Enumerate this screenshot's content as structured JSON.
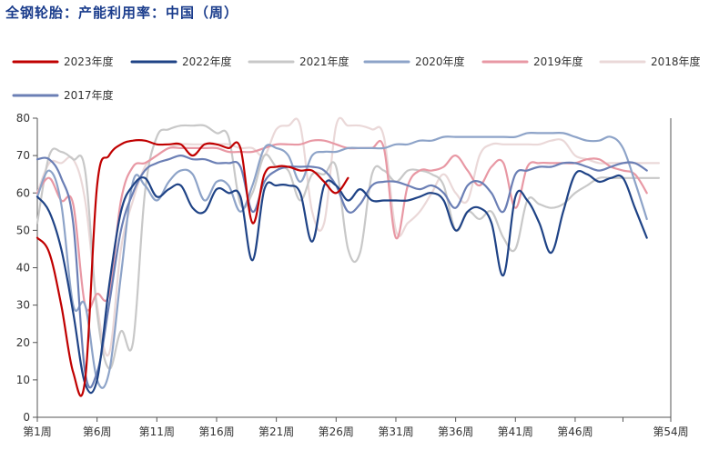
{
  "chart_data": {
    "type": "line",
    "title": "全钢轮胎：产能利用率：中国（周）",
    "xlabel": "",
    "ylabel": "",
    "ylim": [
      0,
      80
    ],
    "xlim": [
      1,
      54
    ],
    "yticks": [
      0,
      10,
      20,
      30,
      40,
      50,
      60,
      70,
      80
    ],
    "xticks": [
      {
        "w": 1,
        "label": "第1周"
      },
      {
        "w": 6,
        "label": "第6周"
      },
      {
        "w": 11,
        "label": "第11周"
      },
      {
        "w": 16,
        "label": "第16周"
      },
      {
        "w": 21,
        "label": "第21周"
      },
      {
        "w": 26,
        "label": "第26周"
      },
      {
        "w": 31,
        "label": "第31周"
      },
      {
        "w": 36,
        "label": "第36周"
      },
      {
        "w": 41,
        "label": "第41周"
      },
      {
        "w": 46,
        "label": "第46周"
      },
      {
        "w": 54,
        "label": "第54周"
      }
    ],
    "legend_position": "top",
    "series": [
      {
        "name": "2018年度",
        "color": "#ead8d8",
        "x": [
          1,
          2,
          3,
          4,
          5,
          6,
          7,
          8,
          9,
          10,
          11,
          12,
          13,
          14,
          15,
          16,
          17,
          18,
          19,
          20,
          21,
          22,
          23,
          24,
          25,
          26,
          27,
          28,
          29,
          30,
          31,
          32,
          33,
          34,
          35,
          36,
          37,
          38,
          39,
          40,
          41,
          42,
          43,
          44,
          45,
          46,
          47,
          48,
          49,
          50,
          51,
          52,
          53
        ],
        "y": [
          60,
          68,
          68,
          69,
          58,
          30,
          17,
          45,
          58,
          67,
          70,
          72,
          73,
          73,
          73,
          73,
          73,
          72,
          72,
          70,
          77,
          78,
          78,
          55,
          52,
          78,
          78,
          78,
          77,
          75,
          50,
          52,
          55,
          60,
          65,
          60,
          58,
          70,
          73,
          73,
          73,
          73,
          73,
          74,
          74,
          70,
          69,
          68,
          68,
          68,
          68,
          68,
          68
        ]
      },
      {
        "name": "2021年度",
        "color": "#c8c8c8",
        "x": [
          1,
          2,
          3,
          4,
          5,
          6,
          7,
          8,
          9,
          10,
          11,
          12,
          13,
          14,
          15,
          16,
          17,
          18,
          19,
          20,
          21,
          22,
          23,
          24,
          25,
          26,
          27,
          28,
          29,
          30,
          31,
          32,
          33,
          34,
          35,
          36,
          37,
          38,
          39,
          40,
          41,
          42,
          43,
          44,
          45,
          46,
          47,
          48,
          49,
          50,
          51,
          52,
          53
        ],
        "y": [
          52,
          70,
          71,
          69,
          66,
          28,
          13,
          23,
          20,
          60,
          75,
          77,
          78,
          78,
          78,
          76,
          75,
          57,
          60,
          70,
          67,
          66,
          58,
          65,
          65,
          67,
          45,
          44,
          65,
          66,
          63,
          66,
          66,
          65,
          62,
          50,
          55,
          53,
          55,
          48,
          45,
          58,
          57,
          56,
          57,
          60,
          62,
          64,
          64,
          64,
          64,
          64,
          64
        ]
      },
      {
        "name": "2019年度",
        "color": "#e898a4",
        "x": [
          1,
          2,
          3,
          4,
          5,
          6,
          7,
          8,
          9,
          10,
          11,
          12,
          13,
          14,
          15,
          16,
          17,
          18,
          19,
          20,
          21,
          22,
          23,
          24,
          25,
          26,
          27,
          28,
          29,
          30,
          31,
          32,
          33,
          34,
          35,
          36,
          37,
          38,
          39,
          40,
          41,
          42,
          43,
          44,
          45,
          46,
          47,
          48,
          49,
          50,
          51,
          52
        ],
        "y": [
          60,
          64,
          58,
          57,
          30,
          33,
          33,
          58,
          67,
          68,
          70,
          72,
          72,
          72,
          72,
          72,
          71,
          71,
          71,
          72,
          73,
          73,
          73,
          74,
          74,
          73,
          72,
          72,
          72,
          72,
          48,
          62,
          66,
          66,
          67,
          70,
          66,
          62,
          67,
          68,
          56,
          67,
          68,
          68,
          68,
          68,
          69,
          69,
          67,
          66,
          65,
          60
        ]
      },
      {
        "name": "2020年度",
        "color": "#8da3c8",
        "x": [
          1,
          2,
          3,
          4,
          5,
          6,
          7,
          8,
          9,
          10,
          11,
          12,
          13,
          14,
          15,
          16,
          17,
          18,
          19,
          20,
          21,
          22,
          23,
          24,
          25,
          26,
          27,
          28,
          29,
          30,
          31,
          32,
          33,
          34,
          35,
          36,
          37,
          38,
          39,
          40,
          41,
          42,
          43,
          44,
          45,
          46,
          47,
          48,
          49,
          50,
          51,
          52
        ],
        "y": [
          59,
          66,
          57,
          30,
          30,
          10,
          12,
          38,
          63,
          62,
          58,
          63,
          66,
          65,
          58,
          63,
          62,
          55,
          62,
          72,
          72,
          70,
          63,
          70,
          71,
          71,
          72,
          72,
          72,
          72,
          73,
          73,
          74,
          74,
          75,
          75,
          75,
          75,
          75,
          75,
          75,
          76,
          76,
          76,
          76,
          75,
          74,
          74,
          75,
          72,
          63,
          53
        ]
      },
      {
        "name": "2017年度",
        "color": "#6b7fb5",
        "x": [
          1,
          2,
          3,
          4,
          5,
          6,
          7,
          8,
          9,
          10,
          11,
          12,
          13,
          14,
          15,
          16,
          17,
          18,
          19,
          20,
          21,
          22,
          23,
          24,
          25,
          26,
          27,
          28,
          29,
          30,
          31,
          32,
          33,
          34,
          35,
          36,
          37,
          38,
          39,
          40,
          41,
          42,
          43,
          44,
          45,
          46,
          47,
          48,
          49,
          50,
          51,
          52
        ],
        "y": [
          69,
          69,
          64,
          52,
          12,
          12,
          30,
          50,
          60,
          66,
          68,
          69,
          70,
          69,
          69,
          68,
          68,
          67,
          55,
          63,
          66,
          67,
          67,
          67,
          66,
          62,
          55,
          57,
          62,
          63,
          63,
          62,
          61,
          62,
          60,
          56,
          62,
          63,
          60,
          55,
          65,
          66,
          67,
          67,
          68,
          68,
          67,
          66,
          67,
          68,
          68,
          66
        ]
      },
      {
        "name": "2022年度",
        "color": "#1f4386",
        "x": [
          1,
          2,
          3,
          4,
          5,
          6,
          7,
          8,
          9,
          10,
          11,
          12,
          13,
          14,
          15,
          16,
          17,
          18,
          19,
          20,
          21,
          22,
          23,
          24,
          25,
          26,
          27,
          28,
          29,
          30,
          31,
          32,
          33,
          34,
          35,
          36,
          37,
          38,
          39,
          40,
          41,
          42,
          43,
          44,
          45,
          46,
          47,
          48,
          49,
          50,
          51,
          52
        ],
        "y": [
          59,
          55,
          45,
          28,
          9,
          10,
          35,
          55,
          62,
          64,
          59,
          61,
          62,
          56,
          55,
          61,
          60,
          59,
          42,
          61,
          62,
          62,
          60,
          47,
          62,
          62,
          58,
          61,
          58,
          58,
          58,
          58,
          59,
          60,
          58,
          50,
          55,
          56,
          52,
          38,
          59,
          58,
          52,
          44,
          55,
          65,
          65,
          63,
          64,
          64,
          56,
          48
        ]
      },
      {
        "name": "2023年度",
        "color": "#c00000",
        "x": [
          1,
          2,
          3,
          4,
          5,
          6,
          7,
          8,
          9,
          10,
          11,
          12,
          13,
          14,
          15,
          16,
          17,
          18,
          19,
          20,
          21,
          22,
          23,
          24,
          25,
          26,
          27
        ],
        "y": [
          48,
          44,
          30,
          12,
          10,
          62,
          70,
          73,
          74,
          74,
          73,
          73,
          73,
          70,
          73,
          73,
          72,
          72,
          52,
          65,
          67,
          67,
          66,
          66,
          63,
          60,
          64
        ]
      }
    ],
    "legend": [
      {
        "name": "2023年度",
        "color": "#c00000"
      },
      {
        "name": "2022年度",
        "color": "#1f4386"
      },
      {
        "name": "2021年度",
        "color": "#c8c8c8"
      },
      {
        "name": "2020年度",
        "color": "#8da3c8"
      },
      {
        "name": "2019年度",
        "color": "#e898a4"
      },
      {
        "name": "2018年度",
        "color": "#ead8d8"
      },
      {
        "name": "2017年度",
        "color": "#6b7fb5"
      }
    ]
  }
}
